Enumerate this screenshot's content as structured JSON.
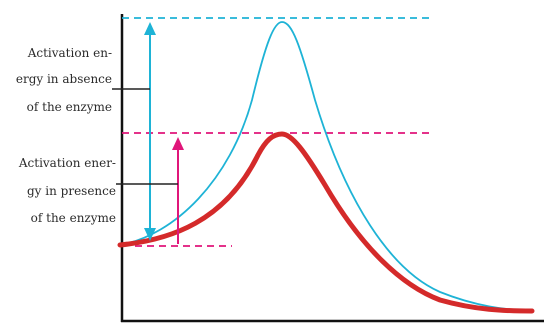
{
  "labels": {
    "absence": [
      "Activation en-",
      "ergy in absence",
      "of the enzyme"
    ],
    "presence": [
      "Activation ener-",
      "gy in presence",
      "of the enzyme"
    ]
  },
  "colors": {
    "uncatalyzed": "#1eb3d6",
    "catalyzed": "#d42a2a",
    "catalyzed_marker": "#e0167a",
    "axis": "#111111",
    "label_text": "#2b2b2b",
    "leader": "#222222"
  },
  "curves": {
    "uncatalyzed": "energy profile without enzyme (higher peak)",
    "catalyzed": "energy profile with enzyme (lower peak)"
  }
}
